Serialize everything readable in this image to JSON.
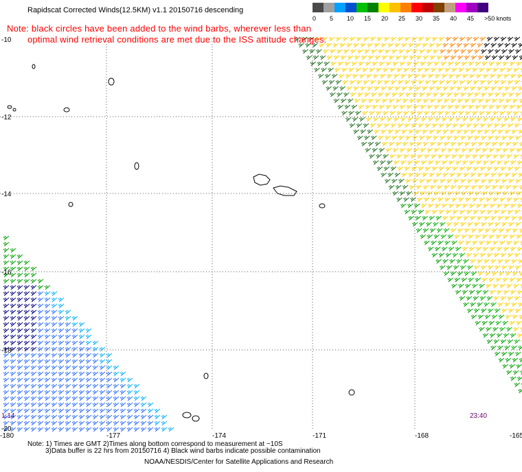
{
  "header": {
    "title": "Rapidscat Corrected Winds(12.5KM) v1.1 20150716 descending",
    "note_line1": "Note: black circles have been added to the wind barbs, wherever less than",
    "note_line2": "optimal wind retrieval conditions are met due to the ISS attitude changes."
  },
  "color_scale": {
    "unit": "knots",
    "swatches": [
      "#4a4a4a",
      "#a0a0a0",
      "#00a0ff",
      "#0050d0",
      "#00c000",
      "#008000",
      "#ffff00",
      "#ffc000",
      "#ff8000",
      "#ff0000",
      "#c00000",
      "#804000",
      "#c0a080",
      "#ff00ff",
      "#a000c0",
      "#400080"
    ],
    "labels": [
      "0",
      "5",
      "10",
      "15",
      "20",
      "25",
      "30",
      "35",
      "40",
      "45",
      ">50 knots"
    ]
  },
  "axes": {
    "y_labels": [
      "-10",
      "-12",
      "-14",
      "-16",
      "-18",
      "-20"
    ],
    "x_labels": [
      "-180",
      "-177",
      "-174",
      "-171",
      "-168",
      "-165"
    ]
  },
  "pass_times": {
    "left": "1:14",
    "right": "23:40"
  },
  "footer": {
    "line1": "Note: 1) Times are GMT 2)Times along bottom correspond to measurement at ~10S",
    "line2": "3)Data buffer is 22 hrs from 20150716 4) Black wind barbs indicate possible contamination",
    "line3": "NOAA/NESDIS/Center for Satellite Applications and Research"
  }
}
